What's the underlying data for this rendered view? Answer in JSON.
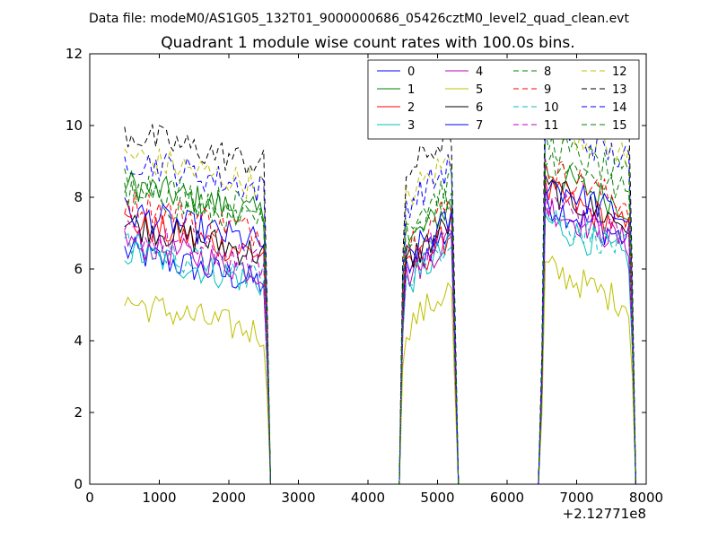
{
  "header": {
    "suptitle": "Data file: modeM0/AS1G05_132T01_9000000686_05426cztM0_level2_quad_clean.evt"
  },
  "chart_data": {
    "type": "line",
    "title": "Quadrant 1 module wise count rates with 100.0s bins.",
    "xlabel": "",
    "ylabel": "",
    "xlim": [
      0,
      8000
    ],
    "ylim": [
      0,
      12
    ],
    "x_offset_label": "+2.12771e8",
    "x_ticks": [
      0,
      1000,
      2000,
      3000,
      4000,
      5000,
      6000,
      7000,
      8000
    ],
    "y_ticks": [
      0,
      2,
      4,
      6,
      8,
      10,
      12
    ],
    "x_tick_labels": [
      "0",
      "1000",
      "2000",
      "3000",
      "4000",
      "5000",
      "6000",
      "7000",
      "8000"
    ],
    "y_tick_labels": [
      "0",
      "2",
      "4",
      "6",
      "8",
      "10",
      "12"
    ],
    "grid": false,
    "legend_position": "top-right",
    "segments": [
      {
        "x0": 500,
        "x1": 2500
      },
      {
        "x0": 4500,
        "x1": 5200
      },
      {
        "x0": 6500,
        "x1": 7750
      }
    ],
    "series": [
      {
        "name": "0",
        "color": "#0000ff",
        "dash": false,
        "levels": [
          6.0,
          6.3,
          7.3
        ]
      },
      {
        "name": "1",
        "color": "#008000",
        "dash": false,
        "levels": [
          7.9,
          7.0,
          8.2
        ]
      },
      {
        "name": "2",
        "color": "#ff0000",
        "dash": false,
        "levels": [
          6.8,
          6.2,
          7.6
        ]
      },
      {
        "name": "3",
        "color": "#00bfbf",
        "dash": false,
        "levels": [
          6.0,
          5.9,
          6.8
        ]
      },
      {
        "name": "4",
        "color": "#bf00bf",
        "dash": false,
        "levels": [
          6.3,
          6.1,
          7.2
        ]
      },
      {
        "name": "5",
        "color": "#bfbf00",
        "dash": false,
        "levels": [
          4.6,
          4.7,
          5.5
        ]
      },
      {
        "name": "6",
        "color": "#000000",
        "dash": false,
        "levels": [
          6.8,
          6.5,
          7.7
        ]
      },
      {
        "name": "7",
        "color": "#0000ff",
        "dash": false,
        "levels": [
          7.1,
          6.6,
          7.9
        ]
      },
      {
        "name": "8",
        "color": "#008000",
        "dash": true,
        "levels": [
          7.6,
          7.3,
          8.6
        ]
      },
      {
        "name": "9",
        "color": "#ff0000",
        "dash": true,
        "levels": [
          7.4,
          7.0,
          8.3
        ]
      },
      {
        "name": "10",
        "color": "#00bfbf",
        "dash": true,
        "levels": [
          6.2,
          6.1,
          7.0
        ]
      },
      {
        "name": "11",
        "color": "#bf00bf",
        "dash": true,
        "levels": [
          6.5,
          6.3,
          7.4
        ]
      },
      {
        "name": "12",
        "color": "#bfbf00",
        "dash": true,
        "levels": [
          8.7,
          8.3,
          9.6
        ]
      },
      {
        "name": "13",
        "color": "#000000",
        "dash": true,
        "levels": [
          9.3,
          9.0,
          10.6
        ]
      },
      {
        "name": "14",
        "color": "#0000ff",
        "dash": true,
        "levels": [
          8.6,
          8.1,
          9.5
        ]
      },
      {
        "name": "15",
        "color": "#008000",
        "dash": true,
        "levels": [
          8.0,
          7.6,
          9.0
        ]
      }
    ]
  }
}
